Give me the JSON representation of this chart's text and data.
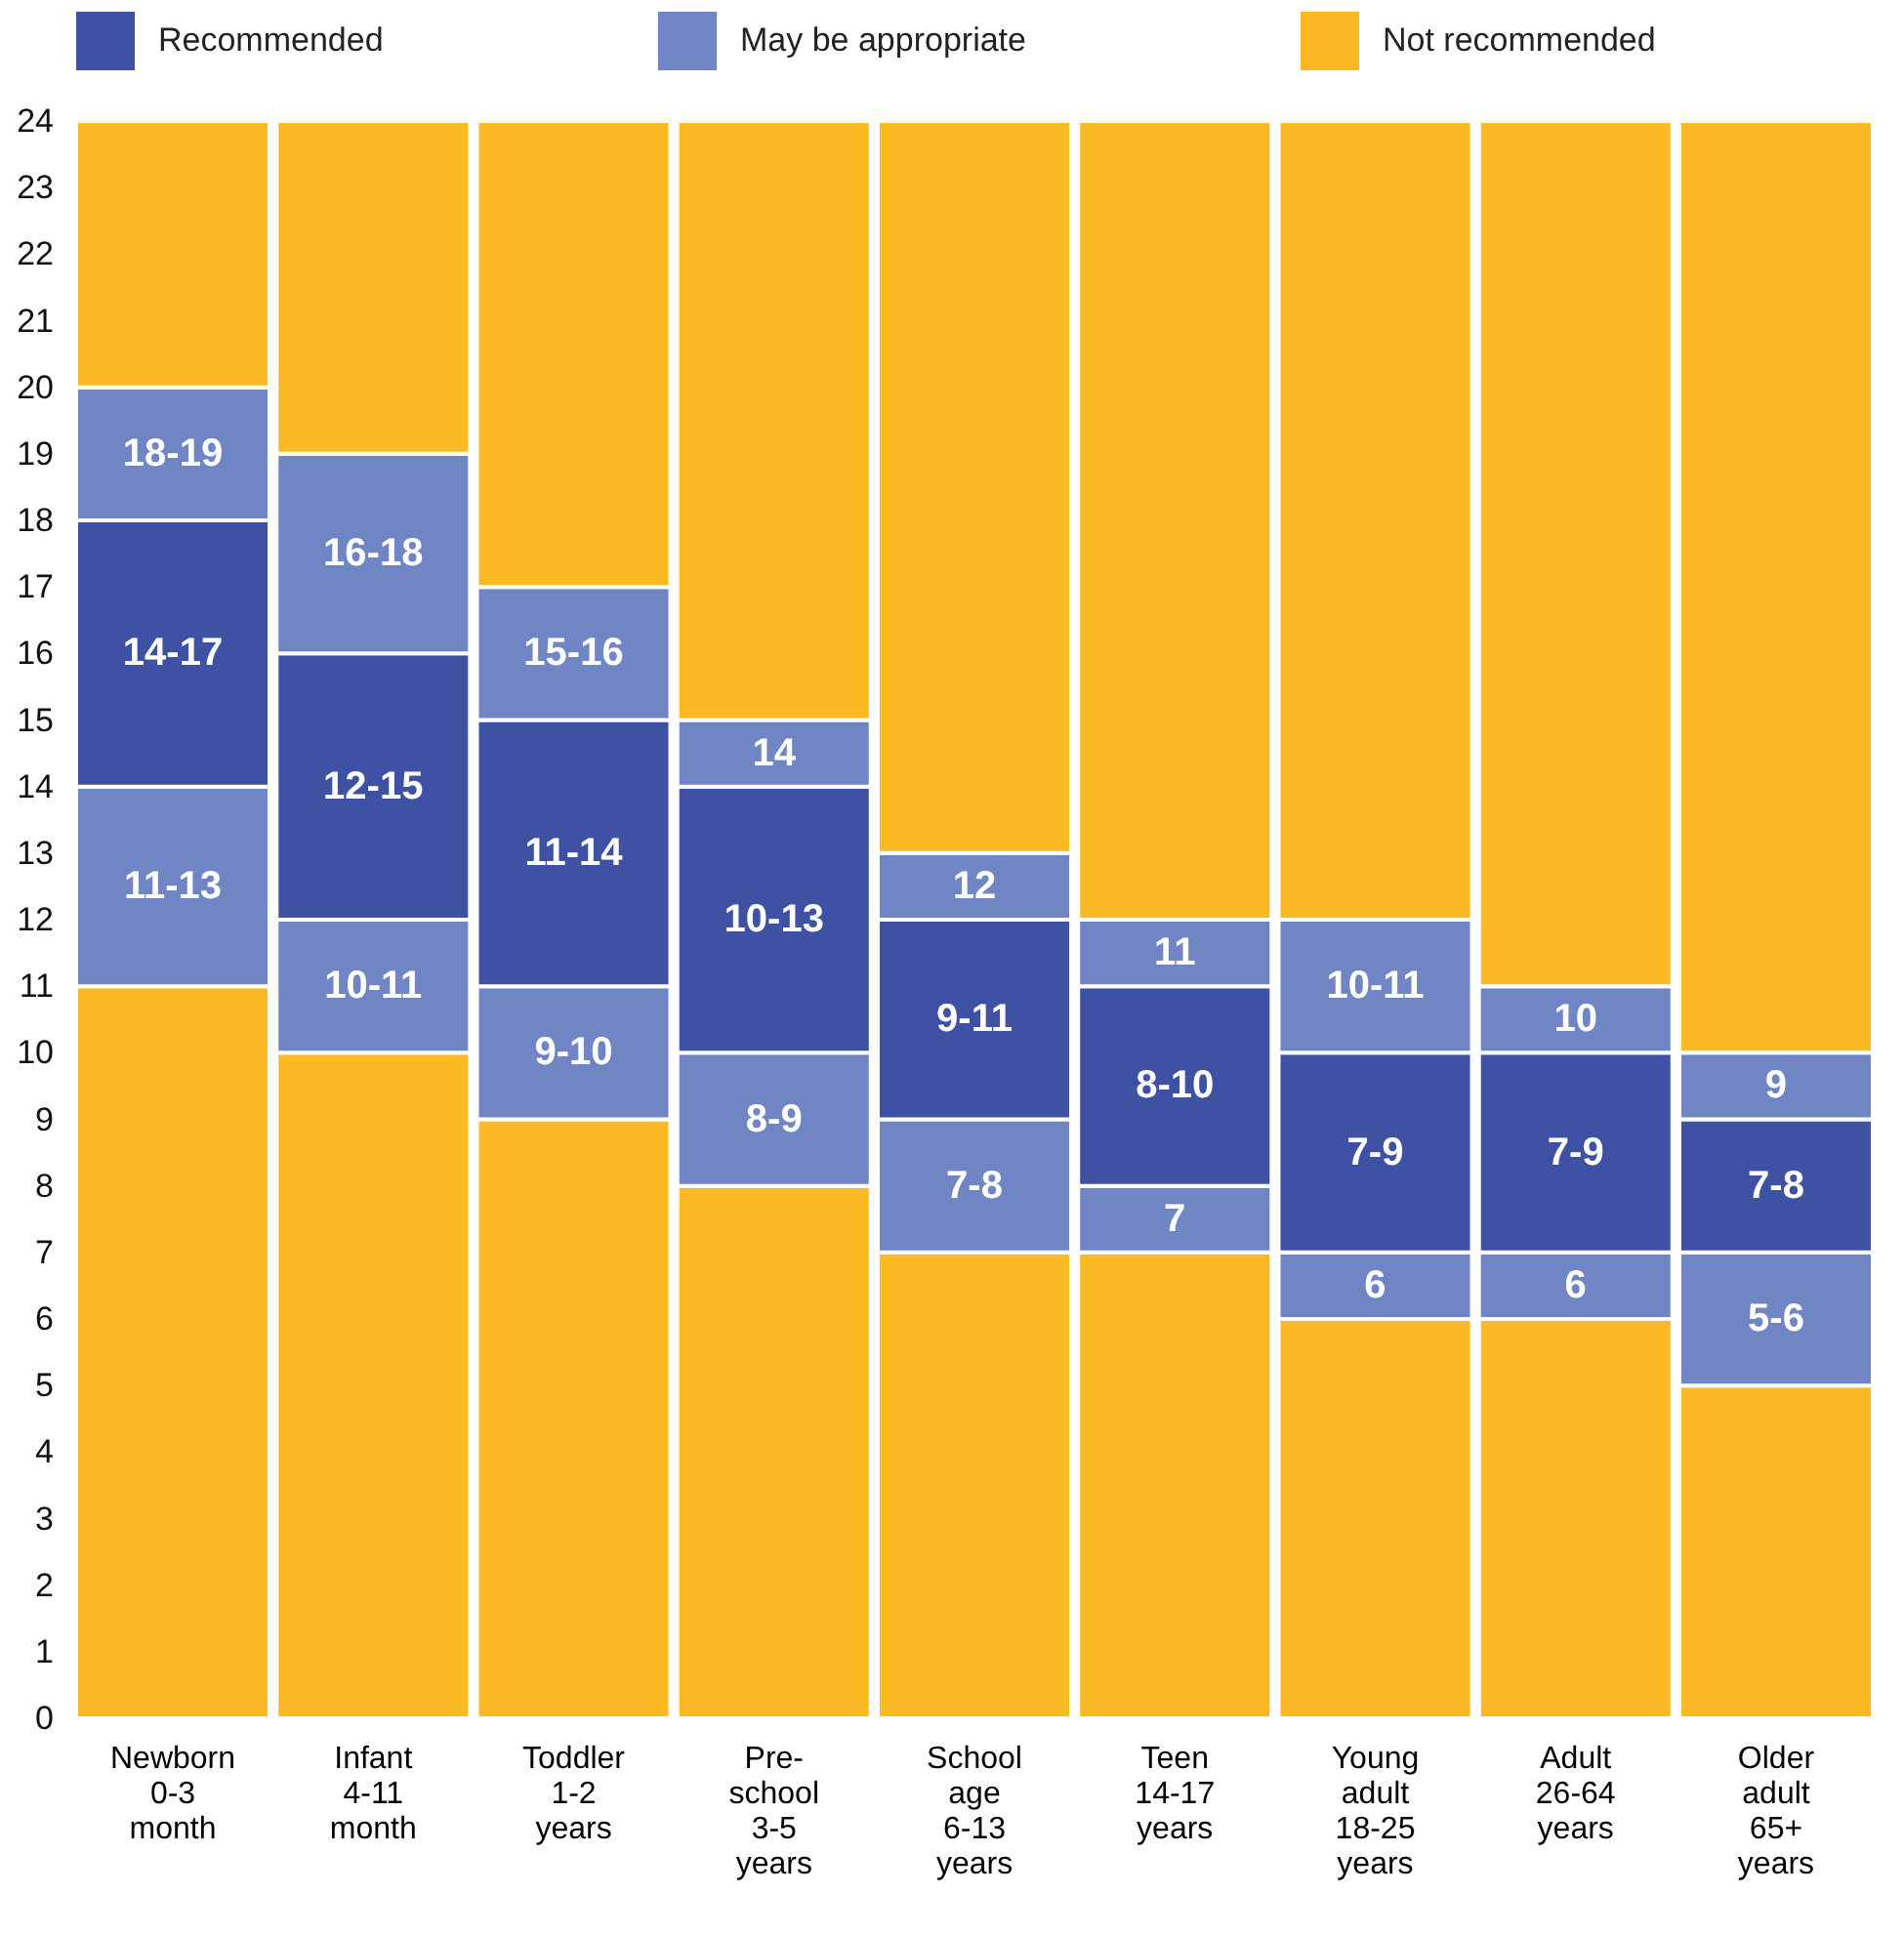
{
  "chart_data": {
    "type": "bar",
    "stacked": true,
    "legend": "top",
    "grid": false,
    "categories": [
      "Newborn\n0-3\nmonth",
      "Infant\n4-11\nmonth",
      "Toddler\n1-2\nyears",
      "Pre-\nschool\n3-5\nyears",
      "School\nage\n6-13\nyears",
      "Teen\n14-17\nyears",
      "Young\nadult\n18-25\nyears",
      "Adult\n26-64\nyears",
      "Older\nadult\n65+\nyears"
    ],
    "ylim": [
      0,
      24
    ],
    "yticks": [
      0,
      1,
      2,
      3,
      4,
      5,
      6,
      7,
      8,
      9,
      10,
      11,
      12,
      13,
      14,
      15,
      16,
      17,
      18,
      19,
      20,
      21,
      22,
      23,
      24
    ],
    "series": [
      {
        "color": "#fbb923",
        "values": [
          11,
          10,
          9,
          8,
          7,
          7,
          6,
          6,
          5
        ]
      },
      {
        "color": "#7086c4",
        "values": [
          3,
          2,
          2,
          2,
          2,
          1,
          1,
          1,
          2
        ]
      },
      {
        "name": "Recommended",
        "color": "#3f51a3",
        "values": [
          4,
          4,
          4,
          4,
          3,
          3,
          3,
          3,
          2
        ]
      },
      {
        "name": "May be appropriate",
        "color": "#7086c4",
        "values": [
          2,
          3,
          2,
          1,
          1,
          1,
          2,
          1,
          1
        ]
      },
      {
        "name": "Not recommended",
        "color": "#fbb923",
        "values": [
          4,
          5,
          7,
          9,
          11,
          12,
          12,
          13,
          14
        ]
      }
    ],
    "annotations": [
      {
        "text": "11-13",
        "x": "Newborn\n0-3\nmonth",
        "y": 14
      },
      {
        "text": "14-17",
        "x": "Newborn\n0-3\nmonth",
        "y": 18
      },
      {
        "text": "18-19",
        "x": "Newborn\n0-3\nmonth",
        "y": 20
      },
      {
        "text": "10-11",
        "x": "Infant\n4-11\nmonth",
        "y": 12
      },
      {
        "text": "12-15",
        "x": "Infant\n4-11\nmonth",
        "y": 16
      },
      {
        "text": "16-18",
        "x": "Infant\n4-11\nmonth",
        "y": 19
      },
      {
        "text": "9-10",
        "x": "Toddler\n1-2\nyears",
        "y": 11
      },
      {
        "text": "11-14",
        "x": "Toddler\n1-2\nyears",
        "y": 15
      },
      {
        "text": "15-16",
        "x": "Toddler\n1-2\nyears",
        "y": 17
      },
      {
        "text": "8-9",
        "x": "Pre-\nschool\n3-5\nyears",
        "y": 10
      },
      {
        "text": "10-13",
        "x": "Pre-\nschool\n3-5\nyears",
        "y": 14
      },
      {
        "text": "14",
        "x": "Pre-\nschool\n3-5\nyears",
        "y": 15
      },
      {
        "text": "7-8",
        "x": "School\nage\n6-13\nyears",
        "y": 9
      },
      {
        "text": "9-11",
        "x": "School\nage\n6-13\nyears",
        "y": 12
      },
      {
        "text": "12",
        "x": "School\nage\n6-13\nyears",
        "y": 13
      },
      {
        "text": "7",
        "x": "Teen\n14-17\nyears",
        "y": 8
      },
      {
        "text": "8-10",
        "x": "Teen\n14-17\nyears",
        "y": 11
      },
      {
        "text": "11",
        "x": "Teen\n14-17\nyears",
        "y": 12
      },
      {
        "text": "6",
        "x": "Young\nadult\n18-25\nyears",
        "y": 7
      },
      {
        "text": "7-9",
        "x": "Young\nadult\n18-25\nyears",
        "y": 10
      },
      {
        "text": "10-11",
        "x": "Young\nadult\n18-25\nyears",
        "y": 12
      },
      {
        "text": "6",
        "x": "Adult\n26-64\nyears",
        "y": 7
      },
      {
        "text": "7-9",
        "x": "Adult\n26-64\nyears",
        "y": 10
      },
      {
        "text": "10",
        "x": "Adult\n26-64\nyears",
        "y": 11
      },
      {
        "text": "5-6",
        "x": "Older\nadult\n65+\nyears",
        "y": 7
      },
      {
        "text": "7-8",
        "x": "Older\nadult\n65+\nyears",
        "y": 9
      },
      {
        "text": "9",
        "x": "Older\nadult\n65+\nyears",
        "y": 10
      }
    ]
  }
}
